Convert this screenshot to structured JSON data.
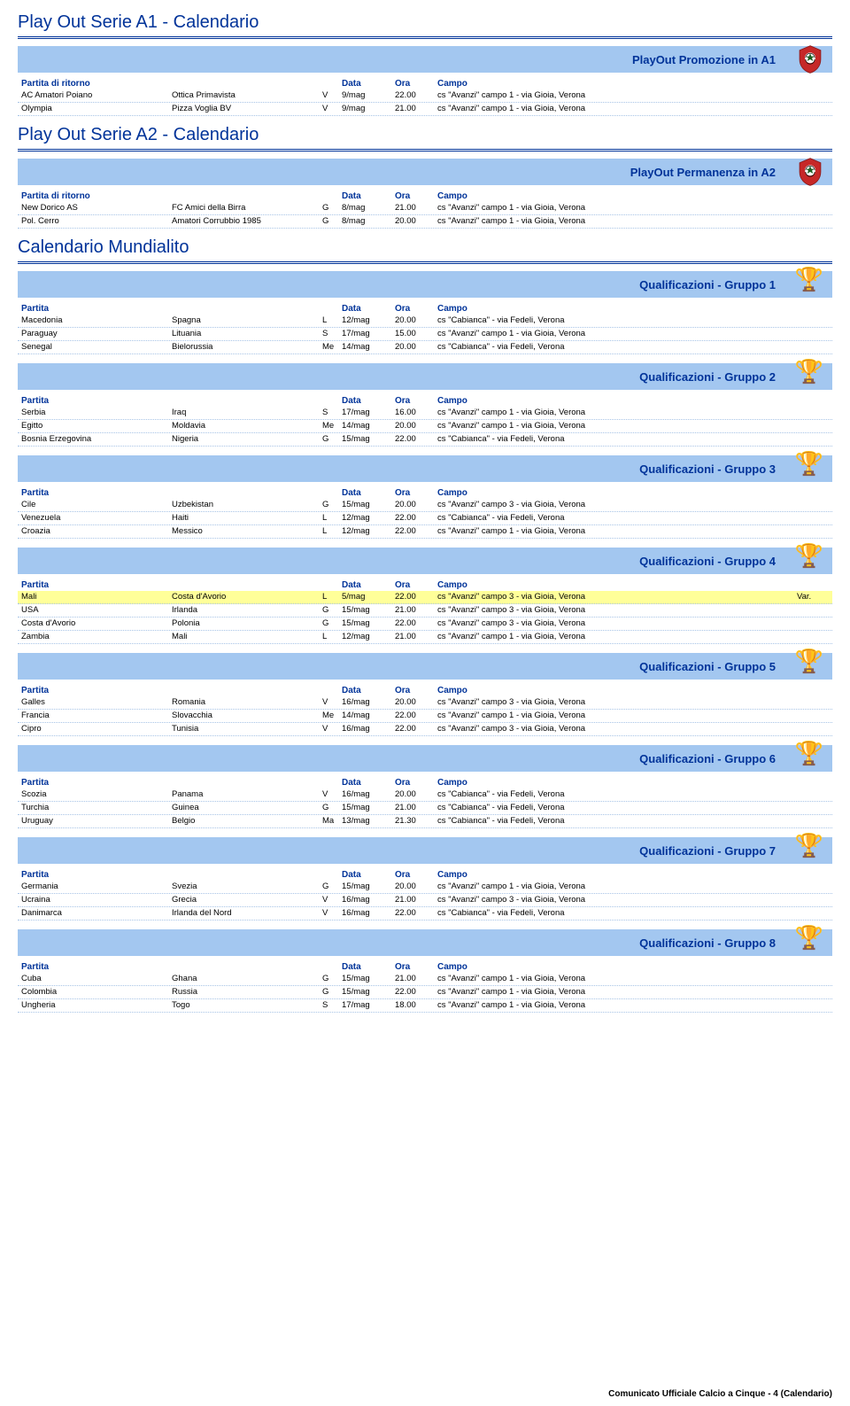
{
  "colors": {
    "band_bg": "#a3c7f0",
    "heading_blue": "#003399",
    "row_dotted": "#a8c4e6",
    "highlight_row": "#ffff99",
    "page_bg": "#ffffff"
  },
  "footer": "Comunicato Ufficiale Calcio a Cinque - 4 (Calendario)",
  "headers": {
    "match_ritorno": "Partita di ritorno",
    "match": "Partita",
    "data": "Data",
    "ora": "Ora",
    "campo": "Campo"
  },
  "sections": [
    {
      "title": "Play Out Serie A1 - Calendario",
      "bands": [
        {
          "label": "PlayOut Promozione in A1",
          "icon": "crest",
          "header_type": "ritorno",
          "rows": [
            {
              "a": "AC Amatori Poiano",
              "b": "Ottica Primavista",
              "d": "V",
              "date": "9/mag",
              "time": "22.00",
              "venue": "cs \"Avanzi\" campo 1 - via Gioia, Verona",
              "hl": false,
              "note": ""
            },
            {
              "a": "Olympia",
              "b": "Pizza Voglia BV",
              "d": "V",
              "date": "9/mag",
              "time": "21.00",
              "venue": "cs \"Avanzi\" campo 1 - via Gioia, Verona",
              "hl": false,
              "note": ""
            }
          ]
        }
      ]
    },
    {
      "title": "Play Out Serie A2 - Calendario",
      "bands": [
        {
          "label": "PlayOut Permanenza in A2",
          "icon": "crest",
          "header_type": "ritorno",
          "rows": [
            {
              "a": "New Dorico AS",
              "b": "FC Amici della Birra",
              "d": "G",
              "date": "8/mag",
              "time": "21.00",
              "venue": "cs \"Avanzi\" campo 1 - via Gioia, Verona",
              "hl": false,
              "note": ""
            },
            {
              "a": "Pol. Cerro",
              "b": "Amatori Corrubbio 1985",
              "d": "G",
              "date": "8/mag",
              "time": "20.00",
              "venue": "cs \"Avanzi\" campo 1 - via Gioia, Verona",
              "hl": false,
              "note": ""
            }
          ]
        }
      ]
    },
    {
      "title": "Calendario Mundialito",
      "bands": [
        {
          "label": "Qualificazioni - Gruppo 1",
          "icon": "trophy",
          "header_type": "match",
          "rows": [
            {
              "a": "Macedonia",
              "b": "Spagna",
              "d": "L",
              "date": "12/mag",
              "time": "20.00",
              "venue": "cs \"Cabianca\" - via Fedeli, Verona",
              "hl": false,
              "note": ""
            },
            {
              "a": "Paraguay",
              "b": "Lituania",
              "d": "S",
              "date": "17/mag",
              "time": "15.00",
              "venue": "cs \"Avanzi\" campo 1 - via Gioia, Verona",
              "hl": false,
              "note": ""
            },
            {
              "a": "Senegal",
              "b": "Bielorussia",
              "d": "Me",
              "date": "14/mag",
              "time": "20.00",
              "venue": "cs \"Cabianca\" - via Fedeli, Verona",
              "hl": false,
              "note": ""
            }
          ]
        },
        {
          "label": "Qualificazioni - Gruppo 2",
          "icon": "trophy",
          "header_type": "match",
          "rows": [
            {
              "a": "Serbia",
              "b": "Iraq",
              "d": "S",
              "date": "17/mag",
              "time": "16.00",
              "venue": "cs \"Avanzi\" campo 1 - via Gioia, Verona",
              "hl": false,
              "note": ""
            },
            {
              "a": "Egitto",
              "b": "Moldavia",
              "d": "Me",
              "date": "14/mag",
              "time": "20.00",
              "venue": "cs \"Avanzi\" campo 1 - via Gioia, Verona",
              "hl": false,
              "note": ""
            },
            {
              "a": "Bosnia Erzegovina",
              "b": "Nigeria",
              "d": "G",
              "date": "15/mag",
              "time": "22.00",
              "venue": "cs \"Cabianca\" - via Fedeli, Verona",
              "hl": false,
              "note": ""
            }
          ]
        },
        {
          "label": "Qualificazioni - Gruppo 3",
          "icon": "trophy",
          "header_type": "match",
          "rows": [
            {
              "a": "Cile",
              "b": "Uzbekistan",
              "d": "G",
              "date": "15/mag",
              "time": "20.00",
              "venue": "cs \"Avanzi\" campo 3 - via Gioia, Verona",
              "hl": false,
              "note": ""
            },
            {
              "a": "Venezuela",
              "b": "Haiti",
              "d": "L",
              "date": "12/mag",
              "time": "22.00",
              "venue": "cs \"Cabianca\" - via Fedeli, Verona",
              "hl": false,
              "note": ""
            },
            {
              "a": "Croazia",
              "b": "Messico",
              "d": "L",
              "date": "12/mag",
              "time": "22.00",
              "venue": "cs \"Avanzi\" campo 1 - via Gioia, Verona",
              "hl": false,
              "note": ""
            }
          ]
        },
        {
          "label": "Qualificazioni - Gruppo 4",
          "icon": "trophy",
          "header_type": "match",
          "rows": [
            {
              "a": "Mali",
              "b": "Costa d'Avorio",
              "d": "L",
              "date": "5/mag",
              "time": "22.00",
              "venue": "cs \"Avanzi\" campo 3 - via Gioia, Verona",
              "hl": true,
              "note": "Var."
            },
            {
              "a": "USA",
              "b": "Irlanda",
              "d": "G",
              "date": "15/mag",
              "time": "21.00",
              "venue": "cs \"Avanzi\" campo 3 - via Gioia, Verona",
              "hl": false,
              "note": ""
            },
            {
              "a": "Costa d'Avorio",
              "b": "Polonia",
              "d": "G",
              "date": "15/mag",
              "time": "22.00",
              "venue": "cs \"Avanzi\" campo 3 - via Gioia, Verona",
              "hl": false,
              "note": ""
            },
            {
              "a": "Zambia",
              "b": "Mali",
              "d": "L",
              "date": "12/mag",
              "time": "21.00",
              "venue": "cs \"Avanzi\" campo 1 - via Gioia, Verona",
              "hl": false,
              "note": ""
            }
          ]
        },
        {
          "label": "Qualificazioni - Gruppo 5",
          "icon": "trophy",
          "header_type": "match",
          "rows": [
            {
              "a": "Galles",
              "b": "Romania",
              "d": "V",
              "date": "16/mag",
              "time": "20.00",
              "venue": "cs \"Avanzi\" campo 3 - via Gioia, Verona",
              "hl": false,
              "note": ""
            },
            {
              "a": "Francia",
              "b": "Slovacchia",
              "d": "Me",
              "date": "14/mag",
              "time": "22.00",
              "venue": "cs \"Avanzi\" campo 1 - via Gioia, Verona",
              "hl": false,
              "note": ""
            },
            {
              "a": "Cipro",
              "b": "Tunisia",
              "d": "V",
              "date": "16/mag",
              "time": "22.00",
              "venue": "cs \"Avanzi\" campo 3 - via Gioia, Verona",
              "hl": false,
              "note": ""
            }
          ]
        },
        {
          "label": "Qualificazioni - Gruppo 6",
          "icon": "trophy",
          "header_type": "match",
          "rows": [
            {
              "a": "Scozia",
              "b": "Panama",
              "d": "V",
              "date": "16/mag",
              "time": "20.00",
              "venue": "cs \"Cabianca\" - via Fedeli, Verona",
              "hl": false,
              "note": ""
            },
            {
              "a": "Turchia",
              "b": "Guinea",
              "d": "G",
              "date": "15/mag",
              "time": "21.00",
              "venue": "cs \"Cabianca\" - via Fedeli, Verona",
              "hl": false,
              "note": ""
            },
            {
              "a": "Uruguay",
              "b": "Belgio",
              "d": "Ma",
              "date": "13/mag",
              "time": "21.30",
              "venue": "cs \"Cabianca\" - via Fedeli, Verona",
              "hl": false,
              "note": ""
            }
          ]
        },
        {
          "label": "Qualificazioni - Gruppo 7",
          "icon": "trophy",
          "header_type": "match",
          "rows": [
            {
              "a": "Germania",
              "b": "Svezia",
              "d": "G",
              "date": "15/mag",
              "time": "20.00",
              "venue": "cs \"Avanzi\" campo 1 - via Gioia, Verona",
              "hl": false,
              "note": ""
            },
            {
              "a": "Ucraina",
              "b": "Grecia",
              "d": "V",
              "date": "16/mag",
              "time": "21.00",
              "venue": "cs \"Avanzi\" campo 3 - via Gioia, Verona",
              "hl": false,
              "note": ""
            },
            {
              "a": "Danimarca",
              "b": "Irlanda del Nord",
              "d": "V",
              "date": "16/mag",
              "time": "22.00",
              "venue": "cs \"Cabianca\" - via Fedeli, Verona",
              "hl": false,
              "note": ""
            }
          ]
        },
        {
          "label": "Qualificazioni - Gruppo 8",
          "icon": "trophy",
          "header_type": "match",
          "rows": [
            {
              "a": "Cuba",
              "b": "Ghana",
              "d": "G",
              "date": "15/mag",
              "time": "21.00",
              "venue": "cs \"Avanzi\" campo 1 - via Gioia, Verona",
              "hl": false,
              "note": ""
            },
            {
              "a": "Colombia",
              "b": "Russia",
              "d": "G",
              "date": "15/mag",
              "time": "22.00",
              "venue": "cs \"Avanzi\" campo 1 - via Gioia, Verona",
              "hl": false,
              "note": ""
            },
            {
              "a": "Ungheria",
              "b": "Togo",
              "d": "S",
              "date": "17/mag",
              "time": "18.00",
              "venue": "cs \"Avanzi\" campo 1 - via Gioia, Verona",
              "hl": false,
              "note": ""
            }
          ]
        }
      ]
    }
  ]
}
